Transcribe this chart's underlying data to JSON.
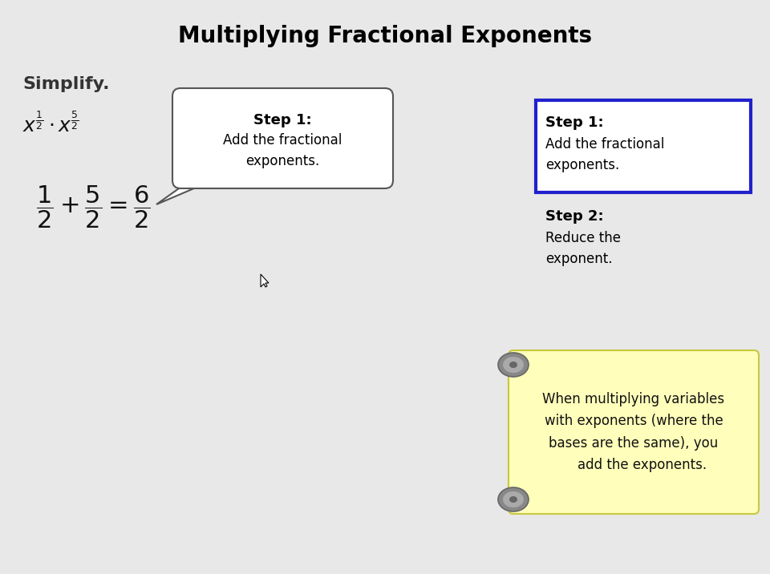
{
  "title": "Multiplying Fractional Exponents",
  "bg_color": "#e8e8e8",
  "simplify_label": "Simplify.",
  "step1_bubble_title": "Step 1:",
  "step1_bubble_text": "Add the fractional\nexponents.",
  "step1_box_title": "Step 1:",
  "step1_box_text": "Add the fractional\nexponents.",
  "step2_title": "Step 2:",
  "step2_text": "Reduce the\nexponent.",
  "scroll_text": "When multiplying variables\nwith exponents (where the\nbases are the same), you\n    add the exponents.",
  "scroll_bg": "#ffffbb",
  "step1_box_border": "#2020cc",
  "step1_box_bg": "#ffffff",
  "white": "#ffffff",
  "dark_gray": "#555555",
  "black": "#000000",
  "light_bg": "#e8e8e8"
}
